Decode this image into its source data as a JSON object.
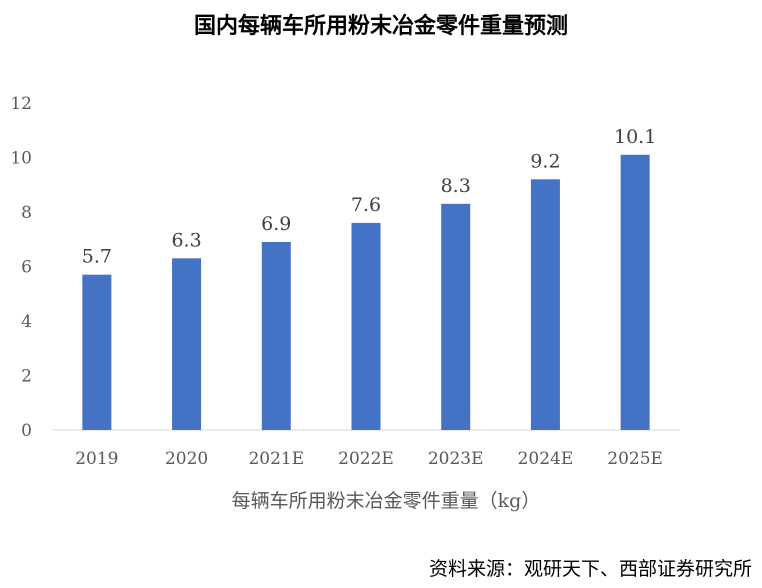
{
  "chart_data": {
    "type": "bar",
    "title": "国内每辆车所用粉末冶金零件重量预测",
    "categories": [
      "2019",
      "2020",
      "2021E",
      "2022E",
      "2023E",
      "2024E",
      "2025E"
    ],
    "values": [
      5.7,
      6.3,
      6.9,
      7.6,
      8.3,
      9.2,
      10.1
    ],
    "data_labels": [
      "5.7",
      "6.3",
      "6.9",
      "7.6",
      "8.3",
      "9.2",
      "10.1"
    ],
    "y_ticks": [
      "0",
      "2",
      "4",
      "6",
      "8",
      "10",
      "12"
    ],
    "xlabel": "每辆车所用粉末冶金零件重量（kg）",
    "ylabel": "",
    "ylim": [
      0,
      12
    ],
    "grid": false,
    "bar_color": "#4472C4"
  },
  "source": "资料来源：观研天下、西部证券研究所"
}
